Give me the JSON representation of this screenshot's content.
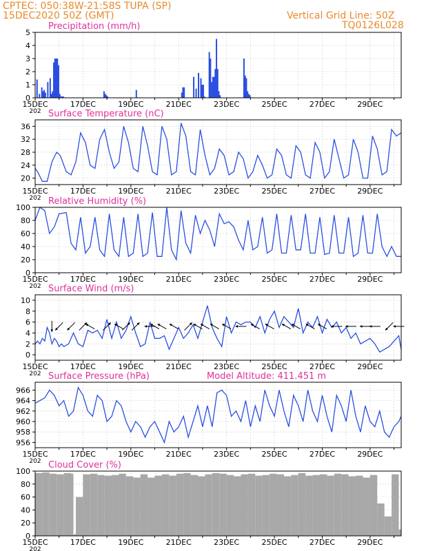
{
  "header": {
    "line1": "CPTEC:   050:38W-21:58S   TUPA (SP)",
    "line2": "15DEC2020 50Z (GMT)",
    "grid_note": "Vertical Grid Line: 50Z",
    "code": "TQ0126L028",
    "model_altitude": "Model Altitude: 411.451 m"
  },
  "colors": {
    "header": "#e88a2a",
    "title": "#e0309a",
    "series": "#2a4fe0",
    "cloud": "#a8a8a8",
    "frame": "#000000"
  },
  "x_axis": {
    "year_fragment": "202",
    "ticks": [
      "15DEC",
      "17DEC",
      "19DEC",
      "21DEC",
      "23DEC",
      "25DEC",
      "27DEC",
      "29DEC"
    ],
    "day_range": [
      0,
      15.3
    ]
  },
  "chart_data": [
    {
      "id": "precip",
      "type": "bar",
      "title": "Precipitation (mm/h)",
      "ylim": [
        0,
        5
      ],
      "yticks": [
        "0",
        "1",
        "2",
        "3",
        "4",
        "5"
      ],
      "x": [
        0.05,
        0.15,
        0.25,
        0.3,
        0.35,
        0.4,
        0.5,
        0.6,
        0.65,
        0.7,
        0.75,
        0.8,
        0.85,
        0.9,
        0.95,
        1.0,
        1.05,
        1.1,
        1.15,
        2.85,
        2.9,
        2.95,
        3.0,
        4.2,
        6.1,
        6.15,
        6.2,
        6.6,
        6.7,
        6.8,
        6.9,
        6.95,
        7.0,
        7.05,
        7.25,
        7.3,
        7.35,
        7.4,
        7.45,
        7.5,
        7.55,
        7.6,
        7.65,
        7.7,
        8.7,
        8.75,
        8.8,
        8.85,
        8.9,
        8.95
      ],
      "values": [
        1.4,
        0.3,
        0.8,
        0.5,
        0.6,
        0.4,
        1.2,
        1.5,
        0.3,
        0.5,
        2.7,
        3.0,
        3.0,
        3.0,
        2.5,
        0.3,
        0.1,
        0.1,
        0.1,
        0.5,
        0.3,
        0.2,
        0.1,
        0.6,
        0.4,
        0.8,
        0.8,
        1.6,
        0.7,
        1.9,
        1.5,
        1.0,
        1.0,
        0.1,
        3.5,
        3.0,
        1.2,
        1.6,
        1.6,
        2.2,
        4.5,
        2.2,
        0.5,
        0.2,
        3.0,
        1.7,
        1.5,
        0.5,
        0.3,
        0.2
      ]
    },
    {
      "id": "temperature",
      "type": "line",
      "title": "Surface Temperature (nC)",
      "ylim": [
        18,
        38
      ],
      "yticks": [
        "20",
        "24",
        "28",
        "32",
        "36"
      ],
      "x": [
        0,
        0.1,
        0.3,
        0.5,
        0.7,
        0.9,
        1.05,
        1.3,
        1.5,
        1.7,
        1.9,
        2.1,
        2.3,
        2.5,
        2.7,
        2.9,
        3.1,
        3.3,
        3.5,
        3.7,
        3.9,
        4.1,
        4.3,
        4.5,
        4.7,
        4.9,
        5.1,
        5.3,
        5.5,
        5.7,
        5.9,
        6.1,
        6.3,
        6.5,
        6.7,
        6.9,
        7.1,
        7.3,
        7.5,
        7.7,
        7.9,
        8.1,
        8.3,
        8.5,
        8.7,
        8.9,
        9.1,
        9.3,
        9.5,
        9.7,
        9.9,
        10.1,
        10.3,
        10.5,
        10.7,
        10.9,
        11.1,
        11.3,
        11.5,
        11.7,
        11.9,
        12.1,
        12.3,
        12.5,
        12.7,
        12.9,
        13.1,
        13.3,
        13.5,
        13.7,
        13.9,
        14.1,
        14.3,
        14.5,
        14.7,
        14.9,
        15.1,
        15.3
      ],
      "values": [
        23,
        22,
        19,
        19,
        25,
        28,
        27,
        22,
        21,
        25,
        34,
        31,
        24,
        23,
        32,
        35,
        28,
        23,
        25,
        36,
        31,
        23,
        22,
        36,
        30,
        22,
        21,
        36,
        32,
        21,
        22,
        37,
        33,
        22,
        21,
        35,
        27,
        21,
        23,
        29,
        27,
        21,
        22,
        28,
        26,
        20,
        22,
        27,
        24,
        20,
        21,
        29,
        27,
        21,
        20,
        30,
        28,
        21,
        20,
        31,
        28,
        20,
        22,
        32,
        26,
        20,
        21,
        32,
        28,
        20,
        20,
        33,
        29,
        21,
        22,
        35,
        33,
        34
      ]
    },
    {
      "id": "humidity",
      "type": "line",
      "title": "Relative Humidity (%)",
      "ylim": [
        0,
        100
      ],
      "yticks": [
        "0",
        "20",
        "40",
        "60",
        "80",
        "100"
      ],
      "x": [
        0,
        0.2,
        0.4,
        0.6,
        0.8,
        1.0,
        1.3,
        1.5,
        1.7,
        1.9,
        2.1,
        2.3,
        2.5,
        2.7,
        2.9,
        3.1,
        3.3,
        3.5,
        3.7,
        3.9,
        4.1,
        4.3,
        4.5,
        4.7,
        4.9,
        5.1,
        5.3,
        5.5,
        5.7,
        5.9,
        6.1,
        6.3,
        6.5,
        6.7,
        6.9,
        7.1,
        7.3,
        7.5,
        7.7,
        7.9,
        8.1,
        8.3,
        8.5,
        8.7,
        8.9,
        9.1,
        9.3,
        9.5,
        9.7,
        9.9,
        10.1,
        10.3,
        10.5,
        10.7,
        10.9,
        11.1,
        11.3,
        11.5,
        11.7,
        11.9,
        12.1,
        12.3,
        12.5,
        12.7,
        12.9,
        13.1,
        13.3,
        13.5,
        13.7,
        13.9,
        14.1,
        14.3,
        14.5,
        14.7,
        14.9,
        15.1,
        15.3
      ],
      "values": [
        80,
        100,
        95,
        60,
        70,
        90,
        92,
        45,
        35,
        85,
        30,
        40,
        85,
        35,
        25,
        90,
        35,
        25,
        85,
        25,
        30,
        90,
        25,
        30,
        92,
        25,
        25,
        100,
        35,
        20,
        95,
        45,
        30,
        88,
        60,
        80,
        65,
        40,
        90,
        75,
        78,
        70,
        50,
        35,
        80,
        35,
        40,
        85,
        30,
        35,
        90,
        30,
        30,
        88,
        35,
        35,
        90,
        30,
        30,
        85,
        28,
        30,
        88,
        30,
        30,
        85,
        25,
        30,
        88,
        30,
        30,
        90,
        40,
        25,
        40,
        25,
        25
      ]
    },
    {
      "id": "wind",
      "type": "line",
      "title": "Surface Wind (m/s)",
      "ylim": [
        -1,
        11
      ],
      "yticks": [
        "0",
        "2",
        "4",
        "6",
        "8",
        "10"
      ],
      "x": [
        0,
        0.1,
        0.2,
        0.3,
        0.4,
        0.5,
        0.6,
        0.7,
        0.8,
        0.9,
        1.0,
        1.1,
        1.2,
        1.4,
        1.6,
        1.8,
        2.0,
        2.2,
        2.4,
        2.6,
        2.8,
        3.0,
        3.2,
        3.4,
        3.6,
        3.8,
        4.0,
        4.2,
        4.4,
        4.6,
        4.8,
        5.0,
        5.2,
        5.4,
        5.6,
        5.8,
        6.0,
        6.2,
        6.4,
        6.6,
        6.8,
        7.0,
        7.2,
        7.4,
        7.6,
        7.8,
        8.0,
        8.2,
        8.4,
        8.6,
        8.8,
        9.0,
        9.2,
        9.4,
        9.6,
        9.8,
        10.0,
        10.2,
        10.4,
        10.6,
        10.8,
        11.0,
        11.2,
        11.4,
        11.6,
        11.8,
        12.0,
        12.2,
        12.4,
        12.6,
        12.8,
        13.0,
        13.2,
        13.4,
        13.6,
        13.8,
        14.0,
        14.2,
        14.4,
        14.6,
        14.8,
        15.0,
        15.2,
        15.3
      ],
      "values": [
        2,
        2.5,
        2,
        3,
        2.5,
        5,
        4,
        2,
        3,
        2.5,
        1.5,
        2,
        1.5,
        2,
        4,
        2,
        1.5,
        4.5,
        4,
        4.5,
        3,
        6.5,
        3,
        6,
        3,
        4.5,
        7,
        4,
        1.5,
        2,
        6,
        3,
        3,
        3.5,
        1,
        3,
        5,
        3,
        4,
        5.5,
        3,
        6,
        9,
        5,
        3,
        1.5,
        7,
        4,
        6,
        5.5,
        6,
        6,
        5,
        7,
        4,
        6.5,
        8,
        5,
        7,
        6,
        5,
        8.5,
        4,
        6,
        5,
        7,
        4,
        6.5,
        5,
        6,
        4,
        5,
        3,
        4,
        2,
        2.5,
        3,
        2,
        0.5,
        1,
        1.5,
        2.5,
        3.5,
        1
      ],
      "arrows": [
        {
          "x": 0.7,
          "dir": "d"
        },
        {
          "x": 1.0,
          "dir": "dl"
        },
        {
          "x": 1.5,
          "dir": "dl"
        },
        {
          "x": 2.0,
          "dir": "ur"
        },
        {
          "x": 2.3,
          "dir": "ul"
        },
        {
          "x": 3.0,
          "dir": "ur"
        },
        {
          "x": 3.5,
          "dir": "ul"
        },
        {
          "x": 3.8,
          "dir": "ur"
        },
        {
          "x": 4.2,
          "dir": "ur"
        },
        {
          "x": 4.8,
          "dir": "l"
        },
        {
          "x": 5.0,
          "dir": "ul"
        },
        {
          "x": 5.3,
          "dir": "ul"
        },
        {
          "x": 5.8,
          "dir": "ul"
        },
        {
          "x": 6.4,
          "dir": "ur"
        },
        {
          "x": 6.8,
          "dir": "ul"
        },
        {
          "x": 7.1,
          "dir": "ul"
        },
        {
          "x": 7.5,
          "dir": "ul"
        },
        {
          "x": 8.0,
          "dir": "ul"
        },
        {
          "x": 8.6,
          "dir": "l"
        },
        {
          "x": 9.2,
          "dir": "ul"
        },
        {
          "x": 9.8,
          "dir": "ul"
        },
        {
          "x": 10.5,
          "dir": "ul"
        },
        {
          "x": 10.9,
          "dir": "ul"
        },
        {
          "x": 11.5,
          "dir": "ul"
        },
        {
          "x": 12.0,
          "dir": "ul"
        },
        {
          "x": 12.6,
          "dir": "l"
        },
        {
          "x": 13.2,
          "dir": "l"
        },
        {
          "x": 13.8,
          "dir": "l"
        },
        {
          "x": 14.2,
          "dir": "l"
        },
        {
          "x": 14.8,
          "dir": "dl"
        },
        {
          "x": 15.2,
          "dir": "l"
        }
      ]
    },
    {
      "id": "pressure",
      "type": "line",
      "title": "Surface Pressure (hPa)",
      "ylim": [
        955,
        967.5
      ],
      "yticks": [
        "956",
        "958",
        "960",
        "962",
        "964",
        "966"
      ],
      "x": [
        0,
        0.2,
        0.4,
        0.6,
        0.8,
        1.0,
        1.2,
        1.4,
        1.6,
        1.8,
        2.0,
        2.2,
        2.4,
        2.6,
        2.8,
        3.0,
        3.2,
        3.4,
        3.6,
        3.8,
        4.0,
        4.2,
        4.4,
        4.6,
        4.8,
        5.0,
        5.2,
        5.4,
        5.6,
        5.8,
        6.0,
        6.2,
        6.4,
        6.6,
        6.8,
        7.0,
        7.2,
        7.4,
        7.6,
        7.8,
        8.0,
        8.2,
        8.4,
        8.6,
        8.8,
        9.0,
        9.2,
        9.4,
        9.6,
        9.8,
        10.0,
        10.2,
        10.4,
        10.6,
        10.8,
        11.0,
        11.2,
        11.4,
        11.6,
        11.8,
        12.0,
        12.2,
        12.4,
        12.6,
        12.8,
        13.0,
        13.2,
        13.4,
        13.6,
        13.8,
        14.0,
        14.2,
        14.4,
        14.6,
        14.8,
        15.0,
        15.2,
        15.3
      ],
      "values": [
        963.5,
        964,
        964.5,
        966,
        965,
        963,
        964,
        961,
        962,
        966.5,
        965,
        962,
        961,
        965,
        964,
        960,
        961,
        964,
        963,
        960,
        958,
        960,
        959,
        957,
        959,
        960,
        958,
        956,
        960,
        958,
        959,
        961,
        957,
        960,
        963,
        959,
        963,
        959,
        965.5,
        966,
        965,
        961,
        962,
        960,
        964,
        959,
        963,
        960,
        966,
        963,
        961,
        966,
        962,
        959,
        965,
        963,
        960,
        966,
        962,
        960,
        965,
        961,
        958,
        965,
        963,
        960,
        966,
        961,
        958,
        963,
        960,
        959,
        962,
        958,
        957,
        959,
        960,
        961
      ]
    },
    {
      "id": "cloud",
      "type": "bar",
      "title": "Cloud Cover (%)",
      "ylim": [
        0,
        100
      ],
      "yticks": [
        "0",
        "20",
        "40",
        "60",
        "80",
        "100"
      ],
      "x": [
        0,
        0.3,
        0.6,
        0.9,
        1.2,
        1.5,
        1.6,
        1.65,
        1.7,
        2.0,
        2.3,
        2.6,
        2.9,
        3.2,
        3.5,
        3.8,
        4.1,
        4.4,
        4.7,
        5.0,
        5.3,
        5.6,
        5.9,
        6.2,
        6.5,
        6.8,
        7.1,
        7.4,
        7.7,
        8.0,
        8.3,
        8.6,
        8.9,
        9.2,
        9.5,
        9.8,
        10.1,
        10.4,
        10.7,
        11.0,
        11.3,
        11.6,
        11.9,
        12.2,
        12.5,
        12.8,
        13.1,
        13.4,
        13.7,
        14.0,
        14.3,
        14.6,
        14.9,
        15.2
      ],
      "values": [
        97,
        98,
        96,
        95,
        97,
        96,
        2,
        3,
        60,
        95,
        96,
        94,
        93,
        94,
        96,
        92,
        90,
        95,
        90,
        93,
        95,
        93,
        96,
        97,
        94,
        92,
        95,
        97,
        96,
        94,
        92,
        95,
        96,
        93,
        94,
        96,
        95,
        92,
        94,
        97,
        93,
        94,
        95,
        93,
        96,
        95,
        92,
        93,
        90,
        94,
        50,
        30,
        95,
        10
      ]
    }
  ]
}
